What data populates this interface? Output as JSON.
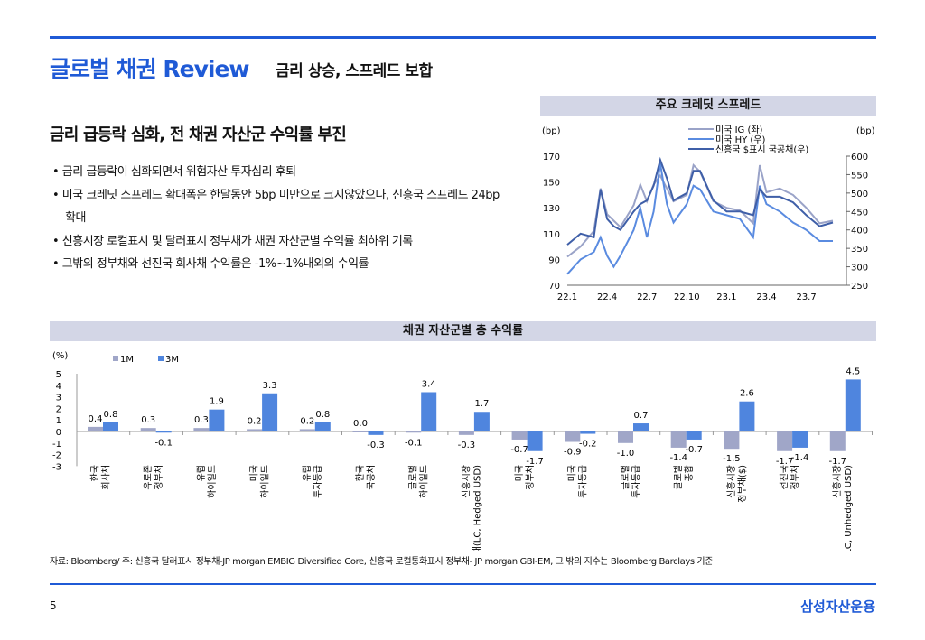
{
  "header": {
    "title": "글로벌 채권 Review",
    "subtitle": "금리 상승, 스프레드 보합"
  },
  "main": {
    "heading": "금리 급등락 심화, 전 채권 자산군 수익률 부진",
    "bullets": [
      "• 금리 급등락이 심화되면서 위험자산 투자심리 후퇴",
      "• 미국 크레딧 스프레드 확대폭은 한달동안 5bp 미만으로 크지않았으나, 신흥국 스프레드 24bp 확대",
      "• 신흥시장 로컬표시 및 달러표시 정부채가 채권 자산군별 수익률 최하위 기록",
      "• 그밖의 정부채와 선진국 회사채 수익률은 -1%~1%내외의 수익률"
    ]
  },
  "colors": {
    "accent": "#1f5ad6",
    "ig": "#9aa3c8",
    "hy": "#5a8be0",
    "em": "#3f5fa8",
    "m1": "#a0a6c8",
    "m3": "#4f85de"
  },
  "chart_data": [
    {
      "type": "line",
      "title": "주요 크레딧 스프레드",
      "ylabel_left": "(bp)",
      "ylabel_right": "(bp)",
      "x_ticks": [
        "22.1",
        "22.4",
        "22.7",
        "22.10",
        "23.1",
        "23.4",
        "23.7"
      ],
      "ylim_left": [
        70,
        170
      ],
      "yticks_left": [
        70,
        90,
        110,
        130,
        150,
        170
      ],
      "ylim_right": [
        250,
        600
      ],
      "yticks_right": [
        250,
        300,
        350,
        400,
        450,
        500,
        550,
        600
      ],
      "x_months": [
        0,
        1,
        2,
        2.5,
        3,
        3.5,
        4,
        5,
        5.5,
        6,
        6.5,
        7,
        7.5,
        8,
        9,
        9.5,
        10,
        11,
        12,
        13,
        14,
        14.5,
        15,
        16,
        17,
        18,
        19,
        20
      ],
      "series": [
        {
          "name": "미국 IG (좌)",
          "axis": "left",
          "values": [
            92,
            100,
            112,
            145,
            125,
            120,
            115,
            132,
            148,
            135,
            148,
            155,
            145,
            135,
            140,
            163,
            158,
            135,
            130,
            128,
            118,
            163,
            142,
            145,
            140,
            130,
            118,
            120
          ]
        },
        {
          "name": "미국 HY (우)",
          "axis": "right",
          "values": [
            280,
            320,
            340,
            380,
            330,
            300,
            330,
            400,
            460,
            380,
            450,
            580,
            470,
            420,
            470,
            520,
            510,
            450,
            440,
            430,
            380,
            520,
            470,
            450,
            420,
            400,
            370,
            370
          ]
        },
        {
          "name": "신흥국 $표시 국공채(우)",
          "axis": "right",
          "values": [
            360,
            390,
            380,
            510,
            430,
            410,
            400,
            450,
            470,
            480,
            520,
            590,
            540,
            480,
            500,
            560,
            560,
            480,
            450,
            450,
            440,
            510,
            490,
            490,
            475,
            440,
            410,
            420
          ]
        }
      ]
    },
    {
      "type": "bar",
      "title": "채권 자산군별 총 수익률",
      "ylabel": "(%)",
      "ylim": [
        -3,
        5
      ],
      "yticks": [
        -3,
        -2,
        -1,
        0,
        1,
        2,
        3,
        4,
        5
      ],
      "categories": [
        "한국 회사채",
        "유로존 정부채",
        "유럽 하이일드",
        "미국 하이일드",
        "유럽 투자등급",
        "한국 국공채",
        "글로벌 하이일드",
        "신흥시장 정부채(LC, Hedged USD)",
        "미국 정부채",
        "미국 투자등급",
        "글로벌 투자등급",
        "글로벌 종합",
        "신흥시장 정부채($)",
        "선진국 정부채",
        "신흥시장 정부채(LC, Unhedged USD)"
      ],
      "series": [
        {
          "name": "1M",
          "values": [
            0.4,
            0.3,
            0.3,
            0.2,
            0.2,
            0.0,
            -0.1,
            -0.3,
            -0.7,
            -0.9,
            -1.0,
            -1.4,
            -1.5,
            -1.7,
            -1.7
          ]
        },
        {
          "name": "3M",
          "values": [
            0.8,
            -0.1,
            1.9,
            3.3,
            0.8,
            -0.3,
            3.4,
            1.7,
            -1.7,
            -0.2,
            0.7,
            -0.7,
            2.6,
            -1.4,
            4.5
          ]
        }
      ]
    }
  ],
  "footer": {
    "note": "자료: Bloomberg/ 주: 신흥국 달러표시 정부채-JP morgan EMBIG Diversified Core, 신흥국 로컬통화표시 정부채- JP morgan GBI-EM, 그 밖의 지수는 Bloomberg Barclays 기준",
    "page": "5",
    "brand": "삼성자산운용"
  }
}
